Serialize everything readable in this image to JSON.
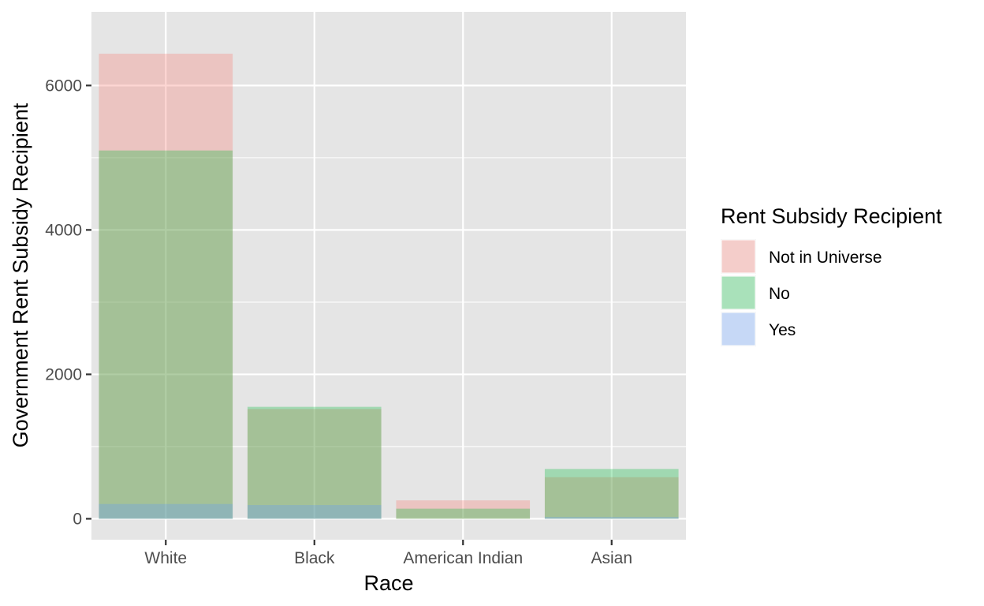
{
  "chart_data": {
    "type": "bar",
    "title": "",
    "xlabel": "Race",
    "ylabel": "Government Rent Subsidy Recipient",
    "categories": [
      "White",
      "Black",
      "American Indian",
      "Asian"
    ],
    "yticks": [
      0,
      2000,
      4000,
      6000
    ],
    "ylim": [
      -290,
      7020
    ],
    "grid": true,
    "bar_mode": "overlay",
    "series": [
      {
        "name": "Not in Universe",
        "color": "#F8766D",
        "values": [
          6440,
          1520,
          255,
          575
        ]
      },
      {
        "name": "No",
        "color": "#00BA38",
        "values": [
          5100,
          1550,
          140,
          690
        ]
      },
      {
        "name": "Yes",
        "color": "#619CFF",
        "values": [
          205,
          190,
          0,
          25
        ]
      }
    ],
    "legend": {
      "title": "Rent Subsidy Recipient",
      "placement": "right"
    },
    "background": "#E5E5E5",
    "gridline_color": "#FFFFFF"
  }
}
